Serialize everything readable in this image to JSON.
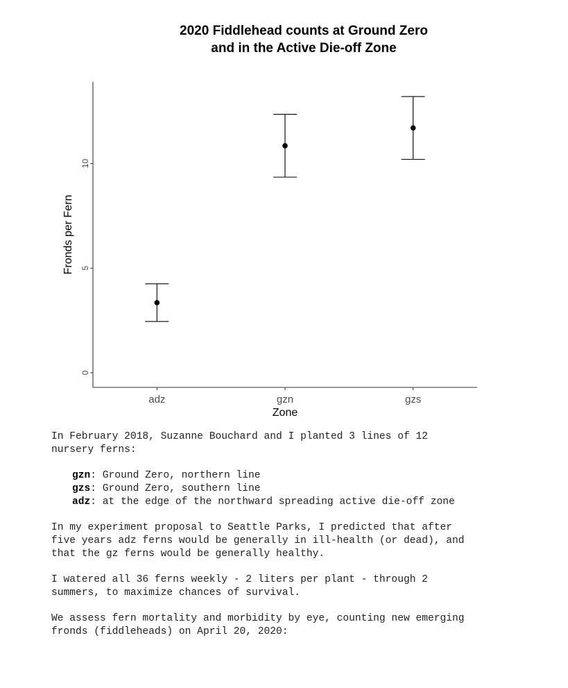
{
  "chart_data": {
    "type": "scatter",
    "title": [
      "2020 Fiddlehead counts at Ground Zero",
      "and  in the Active Die-off Zone"
    ],
    "xlabel": "Zone",
    "ylabel": "Fronds per Fern",
    "categories": [
      "adz",
      "gzn",
      "gzs"
    ],
    "series": [
      {
        "values": [
          3.35,
          10.85,
          11.7
        ],
        "error_low": [
          2.45,
          9.35,
          10.2
        ],
        "error_high": [
          4.25,
          12.35,
          13.2
        ]
      }
    ],
    "ylim": [
      -0.7,
      13.9
    ],
    "yticks": [
      0,
      5,
      10
    ],
    "grid": false,
    "colors": {
      "points": "#000000",
      "axes": "#333333"
    }
  },
  "notes": {
    "intro": "In February 2018, Suzanne Bouchard and I planted 3 lines of 12\nnursery ferns:",
    "lines": [
      {
        "code": "gzn",
        "desc": ": Ground Zero, northern line"
      },
      {
        "code": "gzs",
        "desc": ": Ground Zero, southern line"
      },
      {
        "code": "adz",
        "desc": ": at the edge of the northward spreading active die-off zone"
      }
    ],
    "proposal": "In my experiment proposal to Seattle Parks, I predicted that after\nfive years adz ferns would be generally in ill-health (or dead), and\nthat the gz ferns would be generally healthy.",
    "watering": "I watered all 36 ferns weekly - 2 liters per plant - through 2\nsummers, to maximize chances of survival.",
    "assessment": "We assess fern mortality and morbidity by eye, counting new emerging\nfronds (fiddleheads) on April 20, 2020:"
  }
}
